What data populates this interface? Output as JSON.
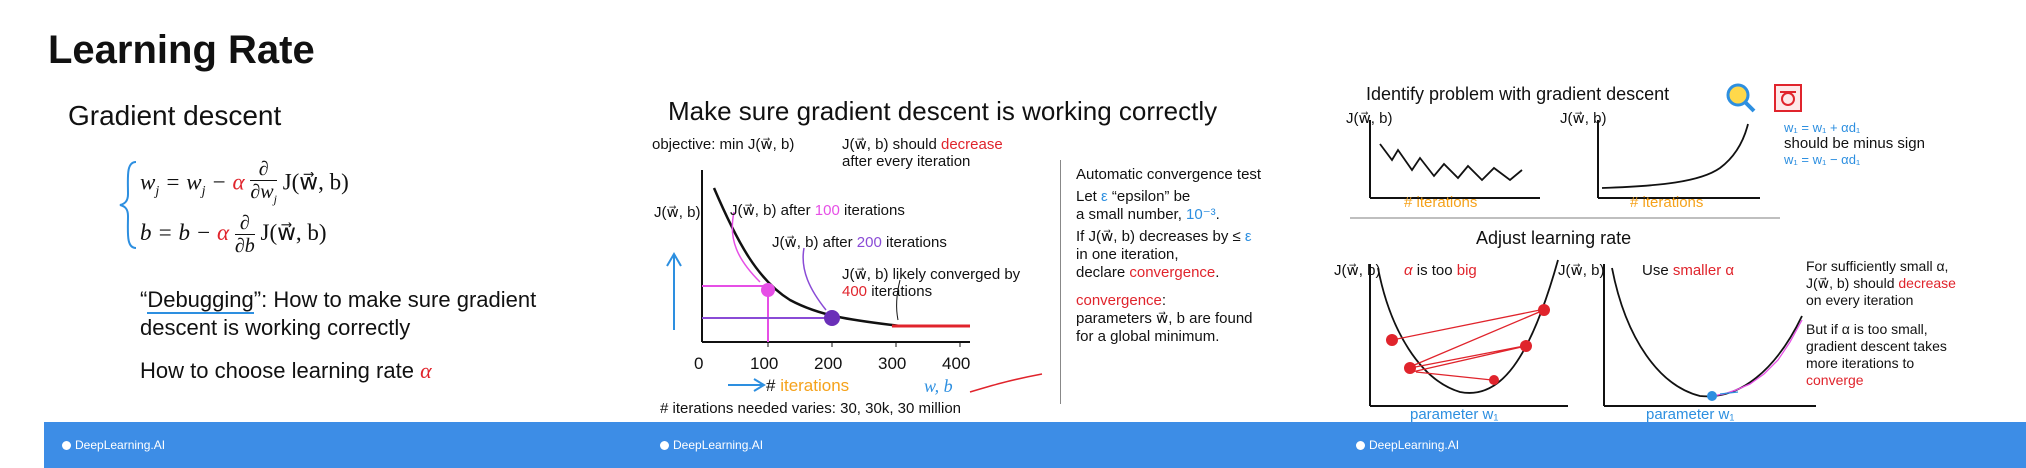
{
  "title": "Learning Rate",
  "panel1": {
    "heading": "Gradient descent",
    "eq_w_lhs": "w",
    "eq_w_sub": "j",
    "eq_w_eq": " = w",
    "eq_w_minus": " − ",
    "alpha": "α",
    "eq_w_frac_num": "∂",
    "eq_w_frac_den": "∂w",
    "eq_w_tail": "J(w⃗, b)",
    "eq_b_lhs": "b = b − ",
    "eq_b_frac_num": "∂",
    "eq_b_frac_den": "∂b",
    "eq_b_tail": "J(w⃗, b)",
    "debugging_word": "Debugging",
    "debugging_rest": "”: How to make sure gradient",
    "debugging_line2": "descent is working correctly",
    "choose_text": "How to choose learning rate ",
    "brand": "DeepLearning.AI"
  },
  "panel2": {
    "heading": "Make sure gradient descent is working correctly",
    "objective": "objective: min J(w⃗, b)",
    "objective_sub": "w⃗,b",
    "should_prefix": "J(w⃗, b) should ",
    "should_red": "decrease",
    "should_line2": "after every iteration",
    "y_label": "J(w⃗, b)",
    "ann_100_a": "J(w⃗, b) after ",
    "ann_100_num": "100",
    "ann_100_b": " iterations",
    "ann_200_a": "J(w⃗, b) after ",
    "ann_200_num": "200",
    "ann_200_b": " iterations",
    "ann_conv_1": "J(w⃗, b) likely converged by",
    "ann_conv_num": "400",
    "ann_conv_2": " iterations",
    "x_label_hash": "# ",
    "x_label_word": "iterations",
    "wb": "w, b",
    "iterations_note": "# iterations needed varies: 30, 30k, 30 million",
    "auto_title": "Automatic convergence test",
    "auto_let": "Let ",
    "auto_eps": "ε",
    "auto_eps_name": " “epsilon” be",
    "auto_small": "a small number, ",
    "auto_small_val": "10⁻³",
    "auto_if": "If J(w⃗, b) decreases by ≤ ",
    "auto_in_one": "in one iteration,",
    "auto_declare": "declare ",
    "auto_conv": "convergence",
    "convergence_head": "convergence",
    "params_line": "parameters w⃗, b are found",
    "global_line": "for a global minimum.",
    "brand": "DeepLearning.AI"
  },
  "panel3": {
    "identify": "Identify problem with gradient descent",
    "y_label": "J(w⃗, b)",
    "iter_label": "# iterations",
    "upd_plus": "w₁ = w₁ + αd₁",
    "minus_note": "should be minus sign",
    "upd_minus": "w₁ = w₁ − αd₁",
    "adjust": "Adjust learning rate",
    "alpha_big_a": "α",
    "alpha_big_b": " is too ",
    "alpha_big_c": "big",
    "use_smaller_a": "Use ",
    "use_smaller_b": "smaller α",
    "param_label": "parameter w₁",
    "suff_1": "For sufficiently small α,",
    "suff_2": "J(w⃗, b) should ",
    "suff_red": "decrease",
    "suff_3": "on every iteration",
    "but_1": "But if α is too small,",
    "but_2": "gradient descent takes",
    "but_3": "more iterations to",
    "but_red": "converge",
    "brand": "DeepLearning.AI"
  },
  "colors": {
    "red": "#e0242c",
    "blue": "#2d8fe0",
    "orange": "#f5a21b",
    "purple": "#8a4bd6",
    "magenta": "#e64fe6",
    "footer": "#3d8de6"
  }
}
